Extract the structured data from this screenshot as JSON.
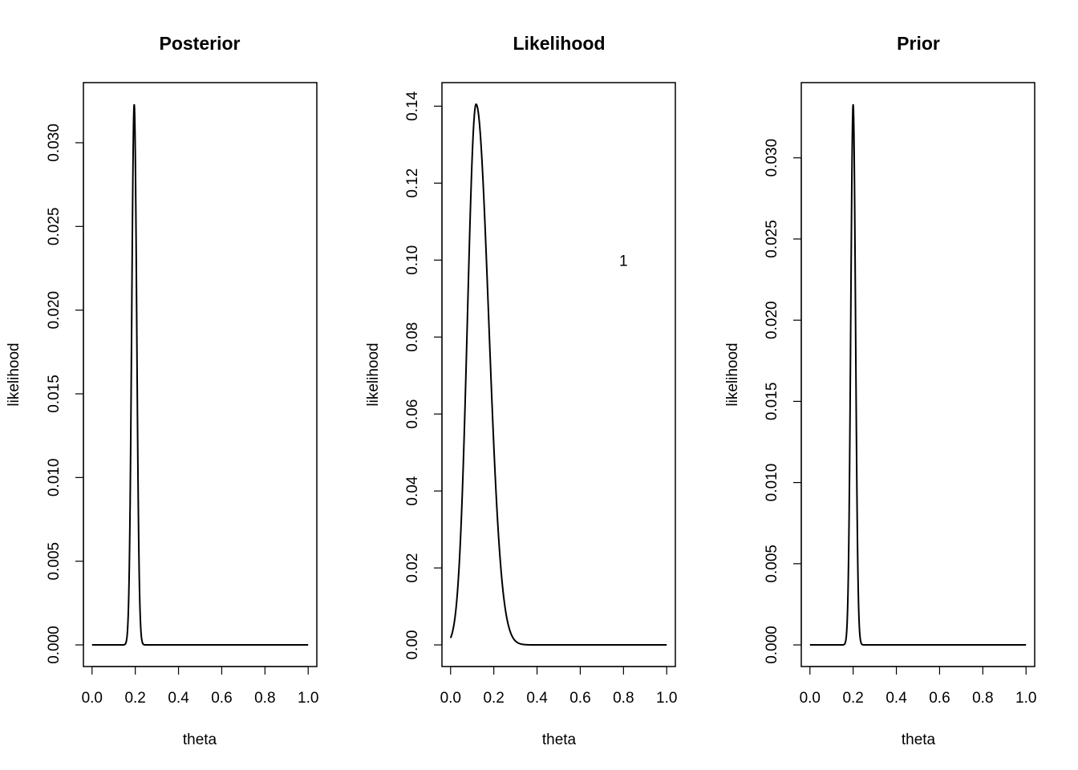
{
  "chart_data": [
    {
      "type": "line",
      "title": "Posterior",
      "xlabel": "theta",
      "ylabel": "likelihood",
      "xlim": [
        0,
        1
      ],
      "ylim": [
        0,
        0.0323
      ],
      "xticks": [
        "0.0",
        "0.2",
        "0.4",
        "0.6",
        "0.8",
        "1.0"
      ],
      "yticks": [
        "0.000",
        "0.005",
        "0.010",
        "0.015",
        "0.020",
        "0.025",
        "0.030"
      ],
      "curve": {
        "shape": "peak",
        "mu": 0.195,
        "sigma": 0.0115,
        "peak": 0.0323
      },
      "annotations": []
    },
    {
      "type": "line",
      "title": "Likelihood",
      "xlabel": "theta",
      "ylabel": "likelihood",
      "xlim": [
        0,
        1
      ],
      "ylim": [
        0,
        0.1405
      ],
      "xticks": [
        "0.0",
        "0.2",
        "0.4",
        "0.6",
        "0.8",
        "1.0"
      ],
      "yticks": [
        "0.00",
        "0.02",
        "0.04",
        "0.06",
        "0.08",
        "0.10",
        "0.12",
        "0.14"
      ],
      "curve": {
        "shape": "skewed-peak",
        "mu": 0.118,
        "sigma_left": 0.04,
        "sigma_right": 0.058,
        "peak": 0.1405
      },
      "annotations": [
        {
          "text": "1",
          "x": 0.8,
          "y": 0.1
        }
      ]
    },
    {
      "type": "line",
      "title": "Prior",
      "xlabel": "theta",
      "ylabel": "likelihood",
      "xlim": [
        0,
        1
      ],
      "ylim": [
        0,
        0.0333
      ],
      "xticks": [
        "0.0",
        "0.2",
        "0.4",
        "0.6",
        "0.8",
        "1.0"
      ],
      "yticks": [
        "0.000",
        "0.005",
        "0.010",
        "0.015",
        "0.020",
        "0.025",
        "0.030"
      ],
      "curve": {
        "shape": "peak",
        "mu": 0.2,
        "sigma": 0.011,
        "peak": 0.0333
      },
      "annotations": []
    }
  ]
}
